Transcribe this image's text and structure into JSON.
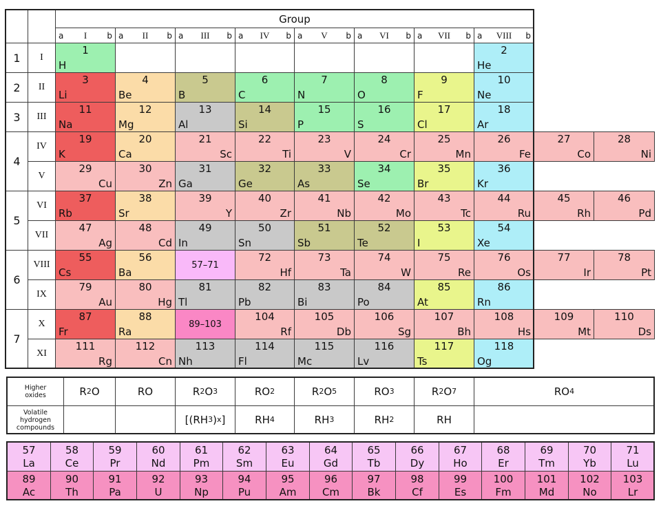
{
  "header": {
    "group_title": "Group",
    "sub_left": "a",
    "sub_right": "b",
    "group_numerals": [
      "I",
      "II",
      "III",
      "IV",
      "V",
      "VI",
      "VII",
      "VIII"
    ]
  },
  "row_labels": [
    "I",
    "II",
    "III",
    "IV",
    "V",
    "VI",
    "VII",
    "VIII",
    "IX",
    "X",
    "XI"
  ],
  "periods": [
    {
      "label": "1",
      "first_row": 0,
      "last_row": 0
    },
    {
      "label": "2",
      "first_row": 1,
      "last_row": 1
    },
    {
      "label": "3",
      "first_row": 2,
      "last_row": 2
    },
    {
      "label": "4",
      "first_row": 3,
      "last_row": 4
    },
    {
      "label": "5",
      "first_row": 5,
      "last_row": 6
    },
    {
      "label": "6",
      "first_row": 7,
      "last_row": 8
    },
    {
      "label": "7",
      "first_row": 9,
      "last_row": 10
    }
  ],
  "colors": {
    "red": "#ee5d5d",
    "peach": "#fbdca8",
    "olive": "#c9c98f",
    "green": "#9df0b0",
    "gray": "#c9c9c9",
    "yellow": "#e9f58c",
    "cyan": "#aeeef8",
    "pink": "#f9bebe",
    "violet": "#f9b9f9",
    "magenta": "#fa87c5",
    "lanthanideRow": "#f7c6f5",
    "actinideRow": "#f691c1"
  },
  "element_rows": [
    [
      {
        "g": 1,
        "n": "1",
        "s": "H",
        "c": "green",
        "a": "left"
      },
      {
        "g": 8,
        "n": "2",
        "s": "He",
        "c": "cyan",
        "a": "left"
      }
    ],
    [
      {
        "g": 1,
        "n": "3",
        "s": "Li",
        "c": "red",
        "a": "left"
      },
      {
        "g": 2,
        "n": "4",
        "s": "Be",
        "c": "peach",
        "a": "left"
      },
      {
        "g": 3,
        "n": "5",
        "s": "B",
        "c": "olive",
        "a": "left"
      },
      {
        "g": 4,
        "n": "6",
        "s": "C",
        "c": "green",
        "a": "left"
      },
      {
        "g": 5,
        "n": "7",
        "s": "N",
        "c": "green",
        "a": "left"
      },
      {
        "g": 6,
        "n": "8",
        "s": "O",
        "c": "green",
        "a": "left"
      },
      {
        "g": 7,
        "n": "9",
        "s": "F",
        "c": "yellow",
        "a": "left"
      },
      {
        "g": 8,
        "n": "10",
        "s": "Ne",
        "c": "cyan",
        "a": "left"
      }
    ],
    [
      {
        "g": 1,
        "n": "11",
        "s": "Na",
        "c": "red",
        "a": "left"
      },
      {
        "g": 2,
        "n": "12",
        "s": "Mg",
        "c": "peach",
        "a": "left"
      },
      {
        "g": 3,
        "n": "13",
        "s": "Al",
        "c": "gray",
        "a": "left"
      },
      {
        "g": 4,
        "n": "14",
        "s": "Si",
        "c": "olive",
        "a": "left"
      },
      {
        "g": 5,
        "n": "15",
        "s": "P",
        "c": "green",
        "a": "left"
      },
      {
        "g": 6,
        "n": "16",
        "s": "S",
        "c": "green",
        "a": "left"
      },
      {
        "g": 7,
        "n": "17",
        "s": "Cl",
        "c": "yellow",
        "a": "left"
      },
      {
        "g": 8,
        "n": "18",
        "s": "Ar",
        "c": "cyan",
        "a": "left"
      }
    ],
    [
      {
        "g": 1,
        "n": "19",
        "s": "K",
        "c": "red",
        "a": "left"
      },
      {
        "g": 2,
        "n": "20",
        "s": "Ca",
        "c": "peach",
        "a": "left"
      },
      {
        "g": 3,
        "n": "21",
        "s": "Sc",
        "c": "pink",
        "a": "right"
      },
      {
        "g": 4,
        "n": "22",
        "s": "Ti",
        "c": "pink",
        "a": "right"
      },
      {
        "g": 5,
        "n": "23",
        "s": "V",
        "c": "pink",
        "a": "right"
      },
      {
        "g": 6,
        "n": "24",
        "s": "Cr",
        "c": "pink",
        "a": "right"
      },
      {
        "g": 7,
        "n": "25",
        "s": "Mn",
        "c": "pink",
        "a": "right"
      },
      {
        "g": 8,
        "n": "26",
        "s": "Fe",
        "c": "pink",
        "a": "right"
      },
      {
        "g": 9,
        "n": "27",
        "s": "Co",
        "c": "pink",
        "a": "right"
      },
      {
        "g": 10,
        "n": "28",
        "s": "Ni",
        "c": "pink",
        "a": "right"
      }
    ],
    [
      {
        "g": 1,
        "n": "29",
        "s": "Cu",
        "c": "pink",
        "a": "right"
      },
      {
        "g": 2,
        "n": "30",
        "s": "Zn",
        "c": "pink",
        "a": "right"
      },
      {
        "g": 3,
        "n": "31",
        "s": "Ga",
        "c": "gray",
        "a": "left"
      },
      {
        "g": 4,
        "n": "32",
        "s": "Ge",
        "c": "olive",
        "a": "left"
      },
      {
        "g": 5,
        "n": "33",
        "s": "As",
        "c": "olive",
        "a": "left"
      },
      {
        "g": 6,
        "n": "34",
        "s": "Se",
        "c": "green",
        "a": "left"
      },
      {
        "g": 7,
        "n": "35",
        "s": "Br",
        "c": "yellow",
        "a": "left"
      },
      {
        "g": 8,
        "n": "36",
        "s": "Kr",
        "c": "cyan",
        "a": "left"
      }
    ],
    [
      {
        "g": 1,
        "n": "37",
        "s": "Rb",
        "c": "red",
        "a": "left"
      },
      {
        "g": 2,
        "n": "38",
        "s": "Sr",
        "c": "peach",
        "a": "left"
      },
      {
        "g": 3,
        "n": "39",
        "s": "Y",
        "c": "pink",
        "a": "right"
      },
      {
        "g": 4,
        "n": "40",
        "s": "Zr",
        "c": "pink",
        "a": "right"
      },
      {
        "g": 5,
        "n": "41",
        "s": "Nb",
        "c": "pink",
        "a": "right"
      },
      {
        "g": 6,
        "n": "42",
        "s": "Mo",
        "c": "pink",
        "a": "right"
      },
      {
        "g": 7,
        "n": "43",
        "s": "Tc",
        "c": "pink",
        "a": "right"
      },
      {
        "g": 8,
        "n": "44",
        "s": "Ru",
        "c": "pink",
        "a": "right"
      },
      {
        "g": 9,
        "n": "45",
        "s": "Rh",
        "c": "pink",
        "a": "right"
      },
      {
        "g": 10,
        "n": "46",
        "s": "Pd",
        "c": "pink",
        "a": "right"
      }
    ],
    [
      {
        "g": 1,
        "n": "47",
        "s": "Ag",
        "c": "pink",
        "a": "right"
      },
      {
        "g": 2,
        "n": "48",
        "s": "Cd",
        "c": "pink",
        "a": "right"
      },
      {
        "g": 3,
        "n": "49",
        "s": "In",
        "c": "gray",
        "a": "left"
      },
      {
        "g": 4,
        "n": "50",
        "s": "Sn",
        "c": "gray",
        "a": "left"
      },
      {
        "g": 5,
        "n": "51",
        "s": "Sb",
        "c": "olive",
        "a": "left"
      },
      {
        "g": 6,
        "n": "52",
        "s": "Te",
        "c": "olive",
        "a": "left"
      },
      {
        "g": 7,
        "n": "53",
        "s": "I",
        "c": "yellow",
        "a": "left"
      },
      {
        "g": 8,
        "n": "54",
        "s": "Xe",
        "c": "cyan",
        "a": "left"
      }
    ],
    [
      {
        "g": 1,
        "n": "55",
        "s": "Cs",
        "c": "red",
        "a": "left"
      },
      {
        "g": 2,
        "n": "56",
        "s": "Ba",
        "c": "peach",
        "a": "left"
      },
      {
        "g": 3,
        "label": "57–71",
        "c": "violet",
        "name": "lanthanide-range-cell"
      },
      {
        "g": 4,
        "n": "72",
        "s": "Hf",
        "c": "pink",
        "a": "right"
      },
      {
        "g": 5,
        "n": "73",
        "s": "Ta",
        "c": "pink",
        "a": "right"
      },
      {
        "g": 6,
        "n": "74",
        "s": "W",
        "c": "pink",
        "a": "right"
      },
      {
        "g": 7,
        "n": "75",
        "s": "Re",
        "c": "pink",
        "a": "right"
      },
      {
        "g": 8,
        "n": "76",
        "s": "Os",
        "c": "pink",
        "a": "right"
      },
      {
        "g": 9,
        "n": "77",
        "s": "Ir",
        "c": "pink",
        "a": "right"
      },
      {
        "g": 10,
        "n": "78",
        "s": "Pt",
        "c": "pink",
        "a": "right"
      }
    ],
    [
      {
        "g": 1,
        "n": "79",
        "s": "Au",
        "c": "pink",
        "a": "right"
      },
      {
        "g": 2,
        "n": "80",
        "s": "Hg",
        "c": "pink",
        "a": "right"
      },
      {
        "g": 3,
        "n": "81",
        "s": "Tl",
        "c": "gray",
        "a": "left"
      },
      {
        "g": 4,
        "n": "82",
        "s": "Pb",
        "c": "gray",
        "a": "left"
      },
      {
        "g": 5,
        "n": "83",
        "s": "Bi",
        "c": "gray",
        "a": "left"
      },
      {
        "g": 6,
        "n": "84",
        "s": "Po",
        "c": "gray",
        "a": "left"
      },
      {
        "g": 7,
        "n": "85",
        "s": "At",
        "c": "yellow",
        "a": "left"
      },
      {
        "g": 8,
        "n": "86",
        "s": "Rn",
        "c": "cyan",
        "a": "left"
      }
    ],
    [
      {
        "g": 1,
        "n": "87",
        "s": "Fr",
        "c": "red",
        "a": "left"
      },
      {
        "g": 2,
        "n": "88",
        "s": "Ra",
        "c": "peach",
        "a": "left"
      },
      {
        "g": 3,
        "label": "89–103",
        "c": "magenta",
        "name": "actinide-range-cell"
      },
      {
        "g": 4,
        "n": "104",
        "s": "Rf",
        "c": "pink",
        "a": "right"
      },
      {
        "g": 5,
        "n": "105",
        "s": "Db",
        "c": "pink",
        "a": "right"
      },
      {
        "g": 6,
        "n": "106",
        "s": "Sg",
        "c": "pink",
        "a": "right"
      },
      {
        "g": 7,
        "n": "107",
        "s": "Bh",
        "c": "pink",
        "a": "right"
      },
      {
        "g": 8,
        "n": "108",
        "s": "Hs",
        "c": "pink",
        "a": "right"
      },
      {
        "g": 9,
        "n": "109",
        "s": "Mt",
        "c": "pink",
        "a": "right"
      },
      {
        "g": 10,
        "n": "110",
        "s": "Ds",
        "c": "pink",
        "a": "right"
      }
    ],
    [
      {
        "g": 1,
        "n": "111",
        "s": "Rg",
        "c": "pink",
        "a": "right"
      },
      {
        "g": 2,
        "n": "112",
        "s": "Cn",
        "c": "pink",
        "a": "right"
      },
      {
        "g": 3,
        "n": "113",
        "s": "Nh",
        "c": "gray",
        "a": "left"
      },
      {
        "g": 4,
        "n": "114",
        "s": "Fl",
        "c": "gray",
        "a": "left"
      },
      {
        "g": 5,
        "n": "115",
        "s": "Mc",
        "c": "gray",
        "a": "left"
      },
      {
        "g": 6,
        "n": "116",
        "s": "Lv",
        "c": "gray",
        "a": "left"
      },
      {
        "g": 7,
        "n": "117",
        "s": "Ts",
        "c": "yellow",
        "a": "left"
      },
      {
        "g": 8,
        "n": "118",
        "s": "Og",
        "c": "cyan",
        "a": "left"
      }
    ]
  ],
  "oxides": {
    "row1_label_lines": [
      "Higher",
      "oxides"
    ],
    "row2_label_lines": [
      "Volatile",
      "hydrogen",
      "compounds"
    ],
    "row1": [
      "R|2|O",
      "RO",
      "R|2|O|3",
      "RO|2",
      "R|2|O|5",
      "RO|3",
      "R|2|O|7",
      "RO|4"
    ],
    "row2": [
      "",
      "",
      "[(RH|3|)|x|]",
      "RH|4",
      "RH|3",
      "RH|2",
      "RH",
      ""
    ]
  },
  "f_block": {
    "lanthanides": {
      "numbers": [
        "57",
        "58",
        "59",
        "60",
        "61",
        "62",
        "63",
        "64",
        "65",
        "66",
        "67",
        "68",
        "69",
        "70",
        "71"
      ],
      "symbols": [
        "La",
        "Ce",
        "Pr",
        "Nd",
        "Pm",
        "Sm",
        "Eu",
        "Gd",
        "Tb",
        "Dy",
        "Ho",
        "Er",
        "Tm",
        "Yb",
        "Lu"
      ],
      "color_key": "lanthanideRow"
    },
    "actinides": {
      "numbers": [
        "89",
        "90",
        "91",
        "92",
        "93",
        "94",
        "95",
        "96",
        "97",
        "98",
        "99",
        "100",
        "101",
        "102",
        "103"
      ],
      "symbols": [
        "Ac",
        "Th",
        "Pa",
        "U",
        "Np",
        "Pu",
        "Am",
        "Cm",
        "Bk",
        "Cf",
        "Es",
        "Fm",
        "Md",
        "No",
        "Lr"
      ],
      "color_key": "actinideRow"
    }
  }
}
